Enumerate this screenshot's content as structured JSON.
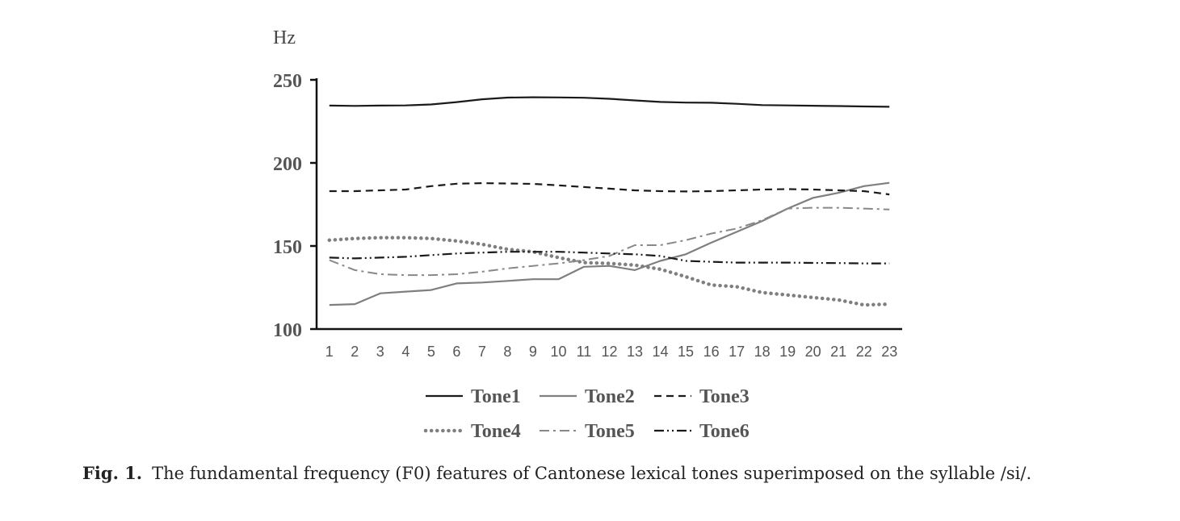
{
  "chart_data": {
    "type": "line",
    "unit_label": "Hz",
    "ylim": [
      100,
      250
    ],
    "yticks": [
      100,
      150,
      200,
      250
    ],
    "x": [
      1,
      2,
      3,
      4,
      5,
      6,
      7,
      8,
      9,
      10,
      11,
      12,
      13,
      14,
      15,
      16,
      17,
      18,
      19,
      20,
      21,
      22,
      23
    ],
    "series": [
      {
        "name": "Tone1",
        "style": "solid",
        "color": "#1a1a1a",
        "values": [
          234.5,
          234.3,
          234.5,
          234.6,
          235.2,
          236.6,
          238.3,
          239.3,
          239.5,
          239.4,
          239.2,
          238.6,
          237.6,
          236.7,
          236.3,
          236.2,
          235.6,
          234.8,
          234.6,
          234.4,
          234.2,
          234.0,
          233.8
        ]
      },
      {
        "name": "Tone2",
        "style": "solid",
        "color": "#7f7f7f",
        "values": [
          114.5,
          115.0,
          121.5,
          122.5,
          123.5,
          127.5,
          128.0,
          129.0,
          130.0,
          130.0,
          137.5,
          138.0,
          135.5,
          141.0,
          145.0,
          152.0,
          158.5,
          165.0,
          172.5,
          179.0,
          182.0,
          186.0,
          188.0
        ]
      },
      {
        "name": "Tone3",
        "style": "dash",
        "color": "#1a1a1a",
        "values": [
          183.0,
          183.0,
          183.5,
          184.0,
          186.0,
          187.5,
          187.8,
          187.6,
          187.4,
          186.5,
          185.5,
          184.5,
          183.5,
          183.0,
          182.8,
          183.0,
          183.5,
          184.0,
          184.2,
          184.0,
          183.5,
          183.0,
          181.0
        ]
      },
      {
        "name": "Tone4",
        "style": "dot",
        "color": "#7f7f7f",
        "values": [
          153.5,
          154.5,
          155.0,
          155.0,
          154.5,
          153.0,
          151.0,
          148.0,
          146.5,
          143.0,
          140.0,
          139.5,
          138.5,
          136.0,
          131.5,
          126.5,
          125.5,
          122.0,
          120.5,
          119.0,
          117.5,
          114.5,
          115.0
        ]
      },
      {
        "name": "Tone5",
        "style": "dashdot",
        "color": "#888888",
        "values": [
          141.5,
          135.5,
          133.0,
          132.5,
          132.5,
          133.0,
          134.5,
          136.5,
          138.0,
          139.5,
          141.5,
          144.0,
          150.5,
          150.5,
          153.5,
          157.5,
          160.5,
          165.5,
          172.5,
          173.0,
          173.0,
          172.5,
          172.0
        ]
      },
      {
        "name": "Tone6",
        "style": "dashdotdot",
        "color": "#1a1a1a",
        "values": [
          143.0,
          142.5,
          143.0,
          143.5,
          144.5,
          145.5,
          146.0,
          146.5,
          146.5,
          146.5,
          146.0,
          145.5,
          145.0,
          144.0,
          141.0,
          140.5,
          140.0,
          140.0,
          140.0,
          139.8,
          139.7,
          139.5,
          139.5
        ]
      }
    ],
    "legend": [
      "Tone1",
      "Tone2",
      "Tone3",
      "Tone4",
      "Tone5",
      "Tone6"
    ],
    "legend_placement": "bottom",
    "grid": false
  },
  "caption": {
    "label": "Fig. 1.",
    "text": "The fundamental frequency (F0) features of Cantonese lexical tones superimposed on the syllable /si/."
  }
}
